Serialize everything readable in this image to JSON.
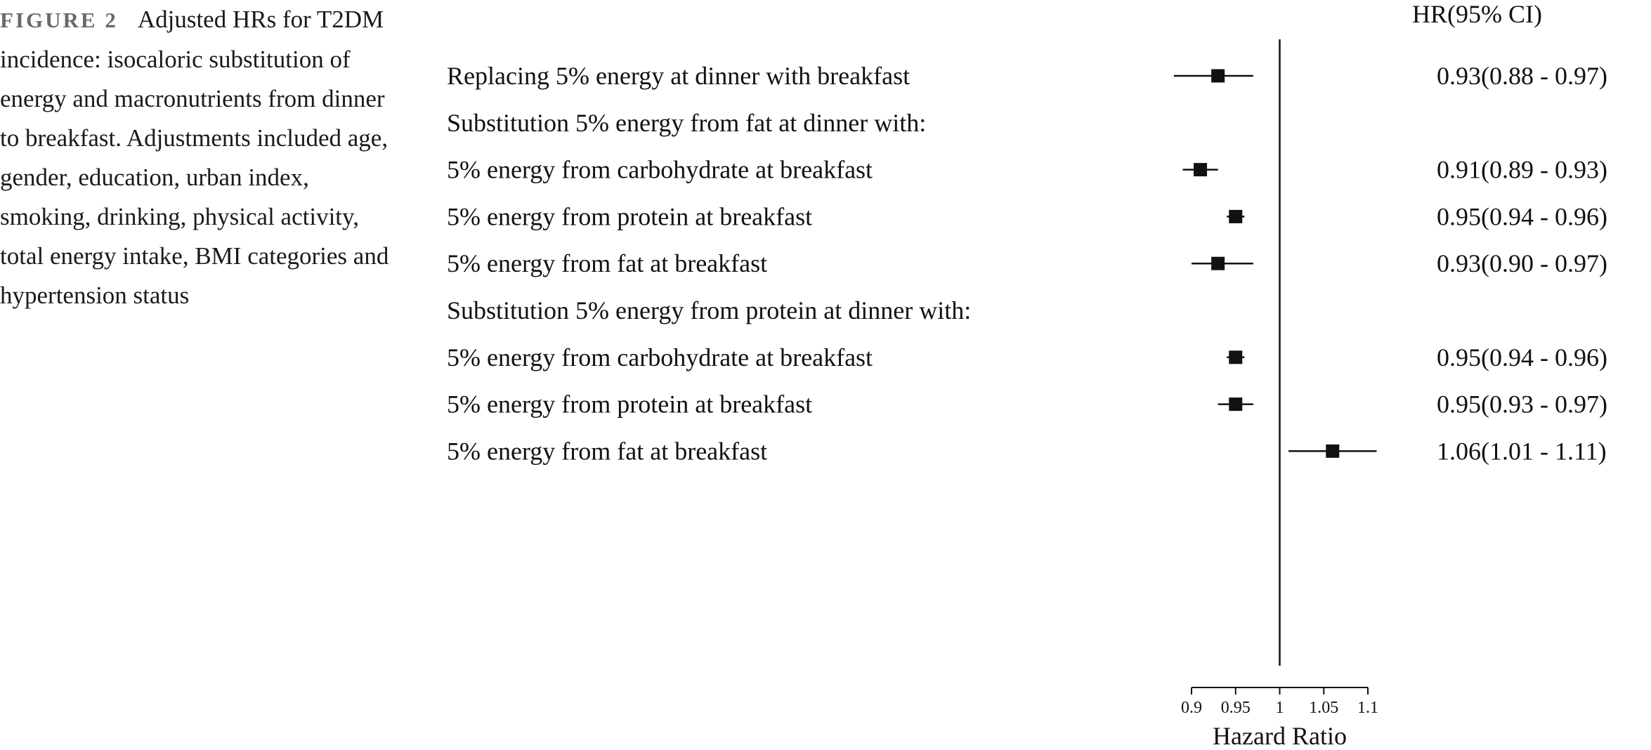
{
  "caption": {
    "figure_label": "FIGURE 2",
    "text": "Adjusted HRs for T2DM incidence: isocaloric substitution of energy and macronutrients from dinner to breakfast. Adjustments included age, gender, education, urban index, smoking, drinking, physical activity, total energy intake, BMI categories and hypertension status"
  },
  "chart_data": {
    "type": "forest",
    "column_header": "HR(95% CI)",
    "xlabel": "Hazard Ratio",
    "xlim": [
      0.9,
      1.1
    ],
    "reference_line": 1,
    "xticks": [
      "0.9",
      "0.95",
      "1",
      "1.05",
      "1.1"
    ],
    "rows": [
      {
        "label": "Replacing 5% energy at dinner with breakfast",
        "hr": 0.93,
        "lo": 0.88,
        "hi": 0.97,
        "hr_text": "0.93(0.88 - 0.97)"
      },
      {
        "label": "Substitution 5% energy from fat at dinner with:",
        "header": true
      },
      {
        "label": "5% energy from carbohydrate at breakfast",
        "hr": 0.91,
        "lo": 0.89,
        "hi": 0.93,
        "hr_text": "0.91(0.89 - 0.93)"
      },
      {
        "label": "5% energy from protein at breakfast",
        "hr": 0.95,
        "lo": 0.94,
        "hi": 0.96,
        "hr_text": "0.95(0.94 - 0.96)"
      },
      {
        "label": "5% energy from fat at breakfast",
        "hr": 0.93,
        "lo": 0.9,
        "hi": 0.97,
        "hr_text": "0.93(0.90 - 0.97)"
      },
      {
        "label": "Substitution 5% energy from protein at dinner with:",
        "header": true
      },
      {
        "label": "5% energy from carbohydrate at breakfast",
        "hr": 0.95,
        "lo": 0.94,
        "hi": 0.96,
        "hr_text": "0.95(0.94 - 0.96)"
      },
      {
        "label": "5% energy from protein at breakfast",
        "hr": 0.95,
        "lo": 0.93,
        "hi": 0.97,
        "hr_text": "0.95(0.93 - 0.97)"
      },
      {
        "label": "5% energy from fat at breakfast",
        "hr": 1.06,
        "lo": 1.01,
        "hi": 1.11,
        "hr_text": "1.06(1.01 - 1.11)"
      }
    ]
  }
}
